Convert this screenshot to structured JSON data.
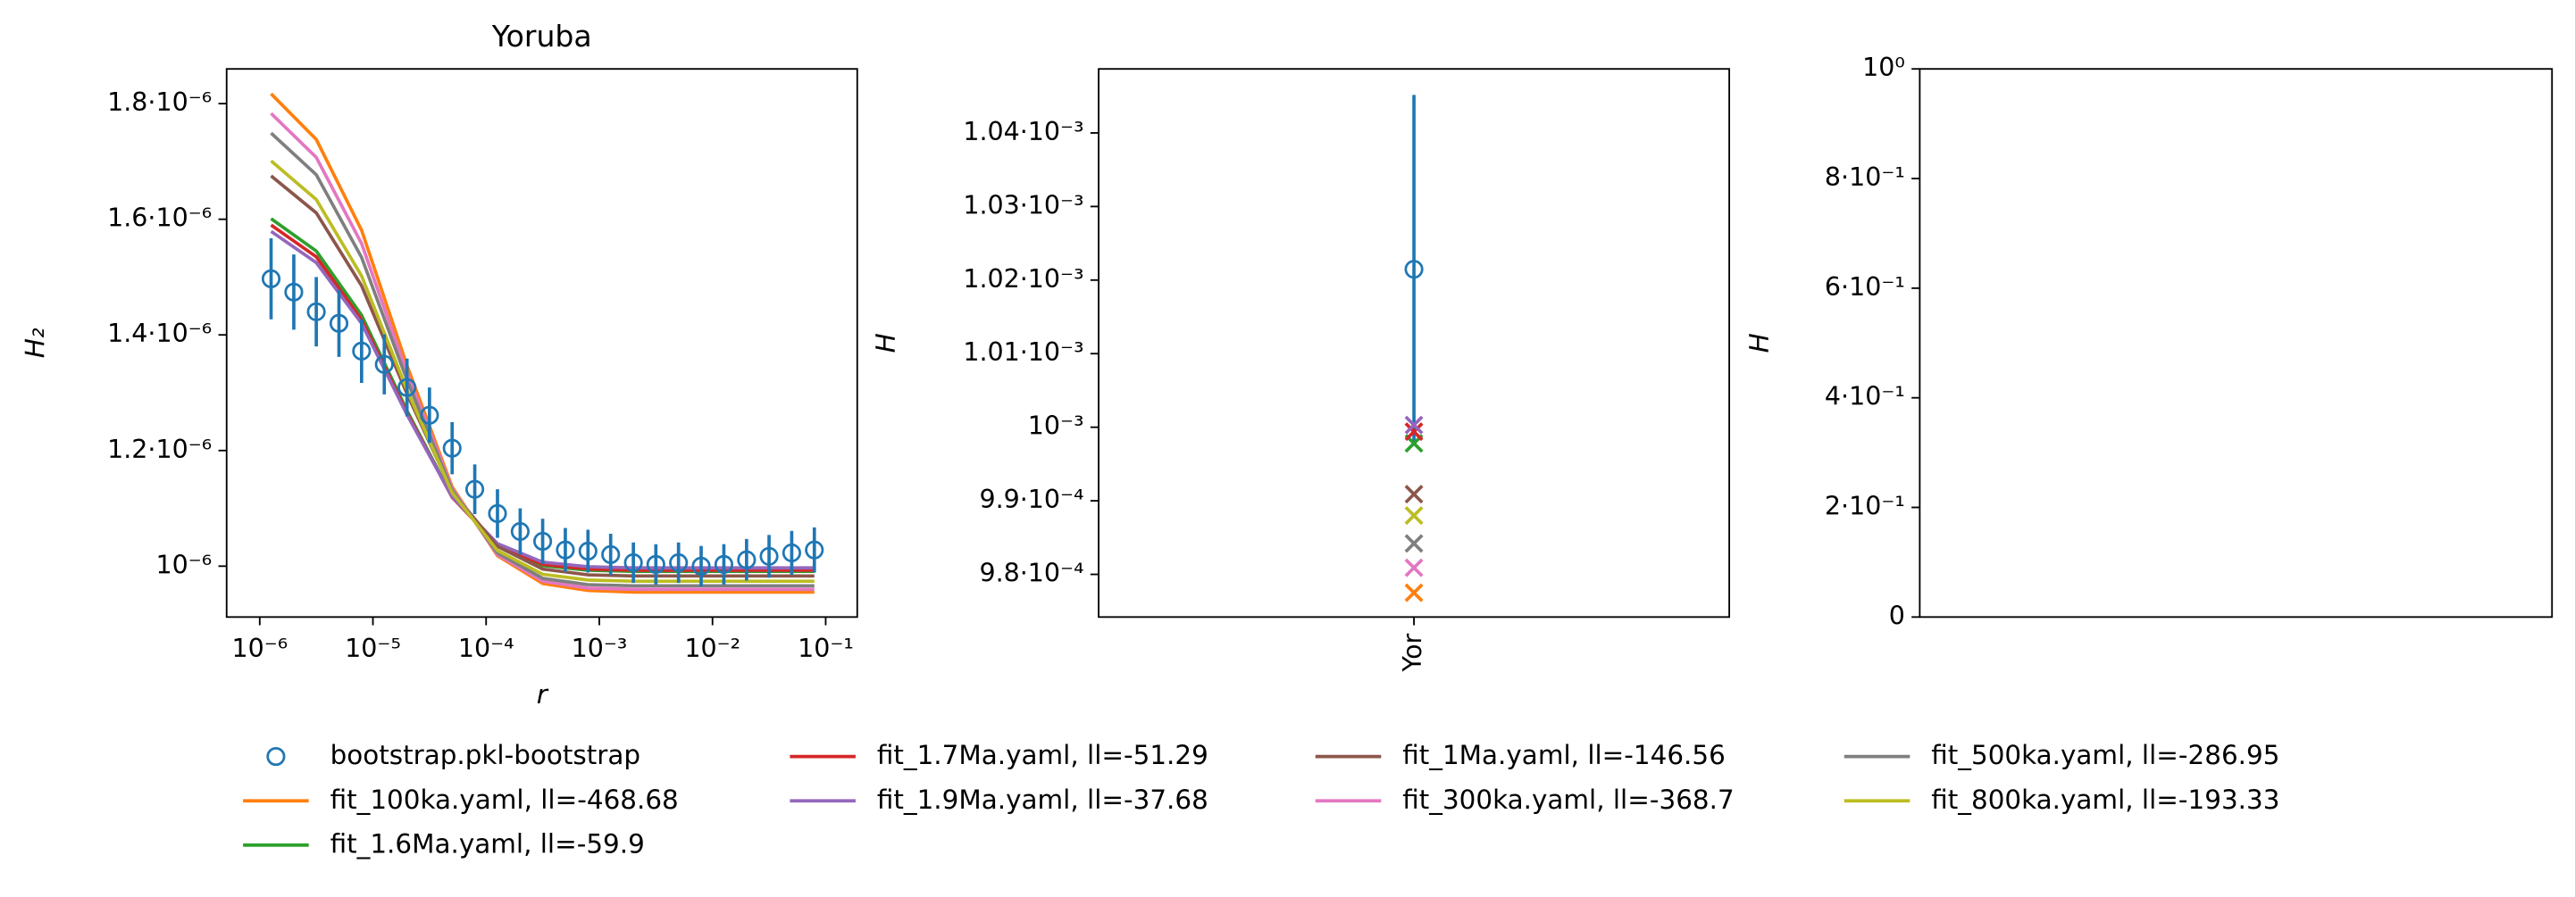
{
  "chart_data": [
    {
      "type": "line",
      "title": "Yoruba",
      "xlabel": "r",
      "ylabel": "H₂",
      "xscale": "log",
      "xlim": [
        5.1e-07,
        0.19
      ],
      "ylim": [
        9.12e-07,
        1.86e-06
      ],
      "xticks": [
        {
          "value": 1e-06,
          "label": "10⁻⁶"
        },
        {
          "value": 1e-05,
          "label": "10⁻⁵"
        },
        {
          "value": 0.0001,
          "label": "10⁻⁴"
        },
        {
          "value": 0.001,
          "label": "10⁻³"
        },
        {
          "value": 0.01,
          "label": "10⁻²"
        },
        {
          "value": 0.1,
          "label": "10⁻¹"
        }
      ],
      "yticks": [
        {
          "value": 1e-06,
          "label": "10⁻⁶"
        },
        {
          "value": 1.2e-06,
          "label": "1.2·10⁻⁶"
        },
        {
          "value": 1.4e-06,
          "label": "1.4·10⁻⁶"
        },
        {
          "value": 1.6e-06,
          "label": "1.6·10⁻⁶"
        },
        {
          "value": 1.8e-06,
          "label": "1.8·10⁻⁶"
        }
      ],
      "legend": "below",
      "legend_columns": 4,
      "series": [
        {
          "name": "bootstrap.pkl-bootstrap",
          "color": "#1f77b4",
          "marker": "o",
          "x": [
            1.26e-06,
            2e-06,
            3.16e-06,
            5.01e-06,
            7.94e-06,
            1.26e-05,
            2e-05,
            3.16e-05,
            5.01e-05,
            7.94e-05,
            0.000126,
            0.0002,
            0.000316,
            0.000501,
            0.000794,
            0.00126,
            0.002,
            0.00316,
            0.00501,
            0.00794,
            0.0126,
            0.02,
            0.0316,
            0.0501,
            0.0794
          ],
          "values": [
            1.497e-06,
            1.474e-06,
            1.44e-06,
            1.42e-06,
            1.372e-06,
            1.349e-06,
            1.309e-06,
            1.261e-06,
            1.204e-06,
            1.133e-06,
            1.091e-06,
            1.06e-06,
            1.043e-06,
            1.028e-06,
            1.026e-06,
            1.02e-06,
            1.006e-06,
            1.003e-06,
            1.006e-06,
            1e-06,
            1.003e-06,
            1.011e-06,
            1.017e-06,
            1.023e-06,
            1.028e-06
          ],
          "errors": [
            7e-08,
            6.5e-08,
            6e-08,
            5.8e-08,
            5.5e-08,
            5.2e-08,
            5e-08,
            4.8e-08,
            4.5e-08,
            4.3e-08,
            4.2e-08,
            4e-08,
            3.9e-08,
            3.8e-08,
            3.7e-08,
            3.6e-08,
            3.5e-08,
            3.5e-08,
            3.5e-08,
            3.5e-08,
            3.5e-08,
            3.6e-08,
            3.7e-08,
            3.8e-08,
            3.9e-08
          ]
        },
        {
          "name": "fit_100ka.yaml, ll=-468.68",
          "color": "#ff7f0e",
          "x": [
            1.26e-06,
            3.16e-06,
            7.94e-06,
            2e-05,
            5.01e-05,
            0.000126,
            0.000316,
            0.000794,
            0.002,
            0.00501,
            0.0126,
            0.0316,
            0.0794
          ],
          "values": [
            1.817e-06,
            1.738e-06,
            1.581e-06,
            1.347e-06,
            1.137e-06,
            1.018e-06,
            9.7e-07,
            9.58e-07,
            9.55e-07,
            9.55e-07,
            9.55e-07,
            9.55e-07,
            9.55e-07
          ]
        },
        {
          "name": "fit_1.6Ma.yaml, ll=-59.9",
          "color": "#2ca02c",
          "x": [
            1.26e-06,
            3.16e-06,
            7.94e-06,
            2e-05,
            5.01e-05,
            0.000126,
            0.000316,
            0.000794,
            0.002,
            0.00501,
            0.0126,
            0.0316,
            0.0794
          ],
          "values": [
            1.601e-06,
            1.545e-06,
            1.434e-06,
            1.269e-06,
            1.12e-06,
            1.036e-06,
            1.001e-06,
            9.93e-07,
            9.91e-07,
            9.91e-07,
            9.91e-07,
            9.91e-07,
            9.91e-07
          ]
        },
        {
          "name": "fit_1.7Ma.yaml, ll=-51.29",
          "color": "#d62728",
          "x": [
            1.26e-06,
            3.16e-06,
            7.94e-06,
            2e-05,
            5.01e-05,
            0.000126,
            0.000316,
            0.000794,
            0.002,
            0.00501,
            0.0126,
            0.0316,
            0.0794
          ],
          "values": [
            1.59e-06,
            1.535e-06,
            1.426e-06,
            1.265e-06,
            1.119e-06,
            1.037e-06,
            1.003e-06,
            9.95e-07,
            9.93e-07,
            9.93e-07,
            9.93e-07,
            9.93e-07,
            9.93e-07
          ]
        },
        {
          "name": "fit_1.9Ma.yaml, ll=-37.68",
          "color": "#9467bd",
          "x": [
            1.26e-06,
            3.16e-06,
            7.94e-06,
            2e-05,
            5.01e-05,
            0.000126,
            0.000316,
            0.000794,
            0.002,
            0.00501,
            0.0126,
            0.0316,
            0.0794
          ],
          "values": [
            1.579e-06,
            1.525e-06,
            1.42e-06,
            1.262e-06,
            1.12e-06,
            1.039e-06,
            1.007e-06,
            9.99e-07,
            9.97e-07,
            9.97e-07,
            9.97e-07,
            9.97e-07,
            9.97e-07
          ]
        },
        {
          "name": "fit_1Ma.yaml, ll=-146.56",
          "color": "#8c564b",
          "x": [
            1.26e-06,
            3.16e-06,
            7.94e-06,
            2e-05,
            5.01e-05,
            0.000126,
            0.000316,
            0.000794,
            0.002,
            0.00501,
            0.0126,
            0.0316,
            0.0794
          ],
          "values": [
            1.675e-06,
            1.611e-06,
            1.485e-06,
            1.298e-06,
            1.129e-06,
            1.034e-06,
            9.95e-07,
            9.85e-07,
            9.83e-07,
            9.83e-07,
            9.83e-07,
            9.83e-07,
            9.83e-07
          ]
        },
        {
          "name": "fit_300ka.yaml, ll=-368.7",
          "color": "#e377c2",
          "x": [
            1.26e-06,
            3.16e-06,
            7.94e-06,
            2e-05,
            5.01e-05,
            0.000126,
            0.000316,
            0.000794,
            0.002,
            0.00501,
            0.0126,
            0.0316,
            0.0794
          ],
          "values": [
            1.783e-06,
            1.707e-06,
            1.558e-06,
            1.334e-06,
            1.134e-06,
            1.02e-06,
            9.74e-07,
            9.62e-07,
            9.6e-07,
            9.6e-07,
            9.6e-07,
            9.6e-07,
            9.6e-07
          ]
        },
        {
          "name": "fit_500ka.yaml, ll=-286.95",
          "color": "#7f7f7f",
          "x": [
            1.26e-06,
            3.16e-06,
            7.94e-06,
            2e-05,
            5.01e-05,
            0.000126,
            0.000316,
            0.000794,
            0.002,
            0.00501,
            0.0126,
            0.0316,
            0.0794
          ],
          "values": [
            1.749e-06,
            1.677e-06,
            1.534e-06,
            1.322e-06,
            1.131e-06,
            1.023e-06,
            9.79e-07,
            9.68e-07,
            9.66e-07,
            9.66e-07,
            9.66e-07,
            9.66e-07,
            9.66e-07
          ]
        },
        {
          "name": "fit_800ka.yaml, ll=-193.33",
          "color": "#bcbd22",
          "x": [
            1.26e-06,
            3.16e-06,
            7.94e-06,
            2e-05,
            5.01e-05,
            0.000126,
            0.000316,
            0.000794,
            0.002,
            0.00501,
            0.0126,
            0.0316,
            0.0794
          ],
          "values": [
            1.701e-06,
            1.634e-06,
            1.502e-06,
            1.305e-06,
            1.127e-06,
            1.027e-06,
            9.86e-07,
            9.76e-07,
            9.74e-07,
            9.74e-07,
            9.74e-07,
            9.74e-07,
            9.74e-07
          ]
        }
      ]
    },
    {
      "type": "scatter",
      "ylabel": "H",
      "categories": [
        "Yor"
      ],
      "ylim": [
        0.0009742,
        0.0010487
      ],
      "yticks": [
        {
          "value": 0.00098,
          "label": "9.8·10⁻⁴"
        },
        {
          "value": 0.00099,
          "label": "9.9·10⁻⁴"
        },
        {
          "value": 0.001,
          "label": "10⁻³"
        },
        {
          "value": 0.00101,
          "label": "1.01·10⁻³"
        },
        {
          "value": 0.00102,
          "label": "1.02·10⁻³"
        },
        {
          "value": 0.00103,
          "label": "1.03·10⁻³"
        },
        {
          "value": 0.00104,
          "label": "1.04·10⁻³"
        }
      ],
      "series": [
        {
          "color": "#1f77b4",
          "marker": "o",
          "values": [
            0.00102147
          ],
          "errors": [
            2.37e-05
          ]
        },
        {
          "color": "#ff7f0e",
          "marker": "x",
          "values": [
            0.0009775
          ]
        },
        {
          "color": "#2ca02c",
          "marker": "x",
          "values": [
            0.0009978
          ]
        },
        {
          "color": "#d62728",
          "marker": "x",
          "values": [
            0.0009994
          ]
        },
        {
          "color": "#9467bd",
          "marker": "x",
          "values": [
            0.0010003
          ]
        },
        {
          "color": "#8c564b",
          "marker": "x",
          "values": [
            0.0009909
          ]
        },
        {
          "color": "#e377c2",
          "marker": "x",
          "values": [
            0.0009809
          ]
        },
        {
          "color": "#7f7f7f",
          "marker": "x",
          "values": [
            0.0009842
          ]
        },
        {
          "color": "#bcbd22",
          "marker": "x",
          "values": [
            0.000988
          ]
        }
      ]
    },
    {
      "type": "scatter",
      "ylabel": "H",
      "ylim": [
        0,
        1
      ],
      "yticks": [
        0,
        {
          "value": 0.2,
          "label": "2·10⁻¹"
        },
        {
          "value": 0.4,
          "label": "4·10⁻¹"
        },
        {
          "value": 0.6,
          "label": "6·10⁻¹"
        },
        {
          "value": 0.8,
          "label": "8·10⁻¹"
        },
        {
          "value": 1,
          "label": "10⁰"
        }
      ],
      "series": []
    }
  ]
}
